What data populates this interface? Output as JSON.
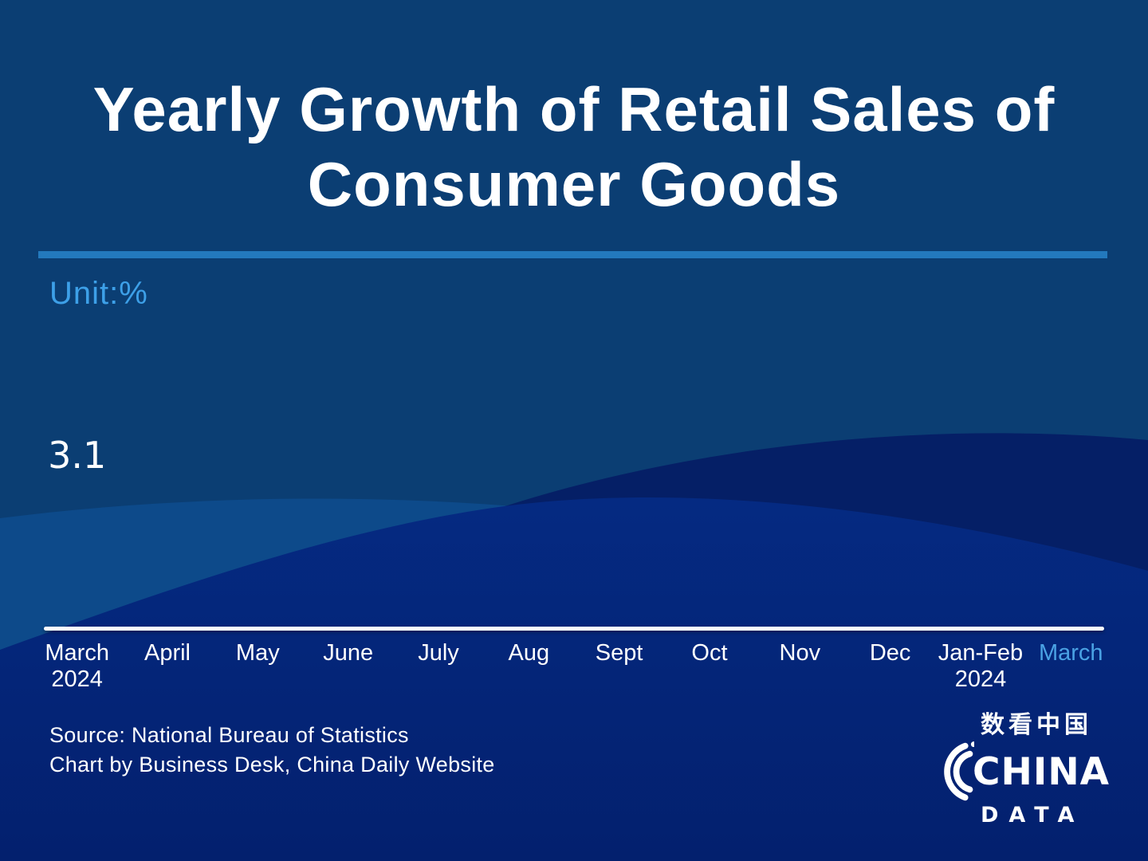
{
  "title": {
    "line1": "Yearly Growth of Retail Sales of",
    "line2": "Consumer Goods"
  },
  "unit_label": "Unit:%",
  "chart_data": {
    "type": "bar",
    "title": "Yearly Growth of Retail Sales of Consumer Goods",
    "unit": "%",
    "categories": [
      "March 2024",
      "April",
      "May",
      "June",
      "July",
      "Aug",
      "Sept",
      "Oct",
      "Nov",
      "Dec",
      "Jan-Feb 2024",
      "March"
    ],
    "values": [
      3.1,
      null,
      null,
      null,
      null,
      null,
      null,
      null,
      null,
      null,
      null,
      null
    ],
    "visible_value_labels": [
      "3.1"
    ],
    "legend": "none",
    "grid": "off"
  },
  "axis": {
    "labels": [
      {
        "text": "March",
        "sub": "2024"
      },
      {
        "text": "April"
      },
      {
        "text": "May"
      },
      {
        "text": "June"
      },
      {
        "text": "July"
      },
      {
        "text": "Aug"
      },
      {
        "text": "Sept"
      },
      {
        "text": "Oct"
      },
      {
        "text": "Nov"
      },
      {
        "text": "Dec"
      },
      {
        "text": "Jan-Feb",
        "sub": "2024"
      },
      {
        "text": "March",
        "highlight": true
      }
    ]
  },
  "footer": {
    "source": "Source: National Bureau of Statistics",
    "credit": "Chart by Business Desk, China Daily Website"
  },
  "logo": {
    "chinese": "数看中国",
    "name": "CHINA",
    "sub": "DATA"
  },
  "colors": {
    "background-base": "#0b3e73",
    "background-band": "#0d4a8a",
    "background-hill": "#051f66",
    "background-royal-top": "#052a82",
    "background-royal-bottom": "#03206e",
    "divider": "#2379bd",
    "unit-text": "#3da0e8",
    "highlight-month": "#4aa2e4",
    "text-white": "#ffffff"
  }
}
